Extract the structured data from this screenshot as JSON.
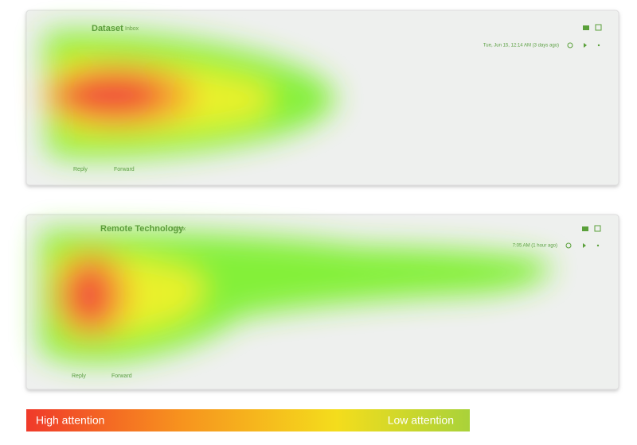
{
  "emails": [
    {
      "title": "Dataset",
      "label": "Inbox",
      "date": "Tue, Jun 15, 12:14 AM (3 days ago)",
      "reply": "Reply",
      "forward": "Forward"
    },
    {
      "title": "Remote Technology",
      "label": "Inbox",
      "date": "7:05 AM (1 hour ago)",
      "reply": "Reply",
      "forward": "Forward"
    }
  ],
  "legend": {
    "high": "High attention",
    "low": "Low attention"
  }
}
